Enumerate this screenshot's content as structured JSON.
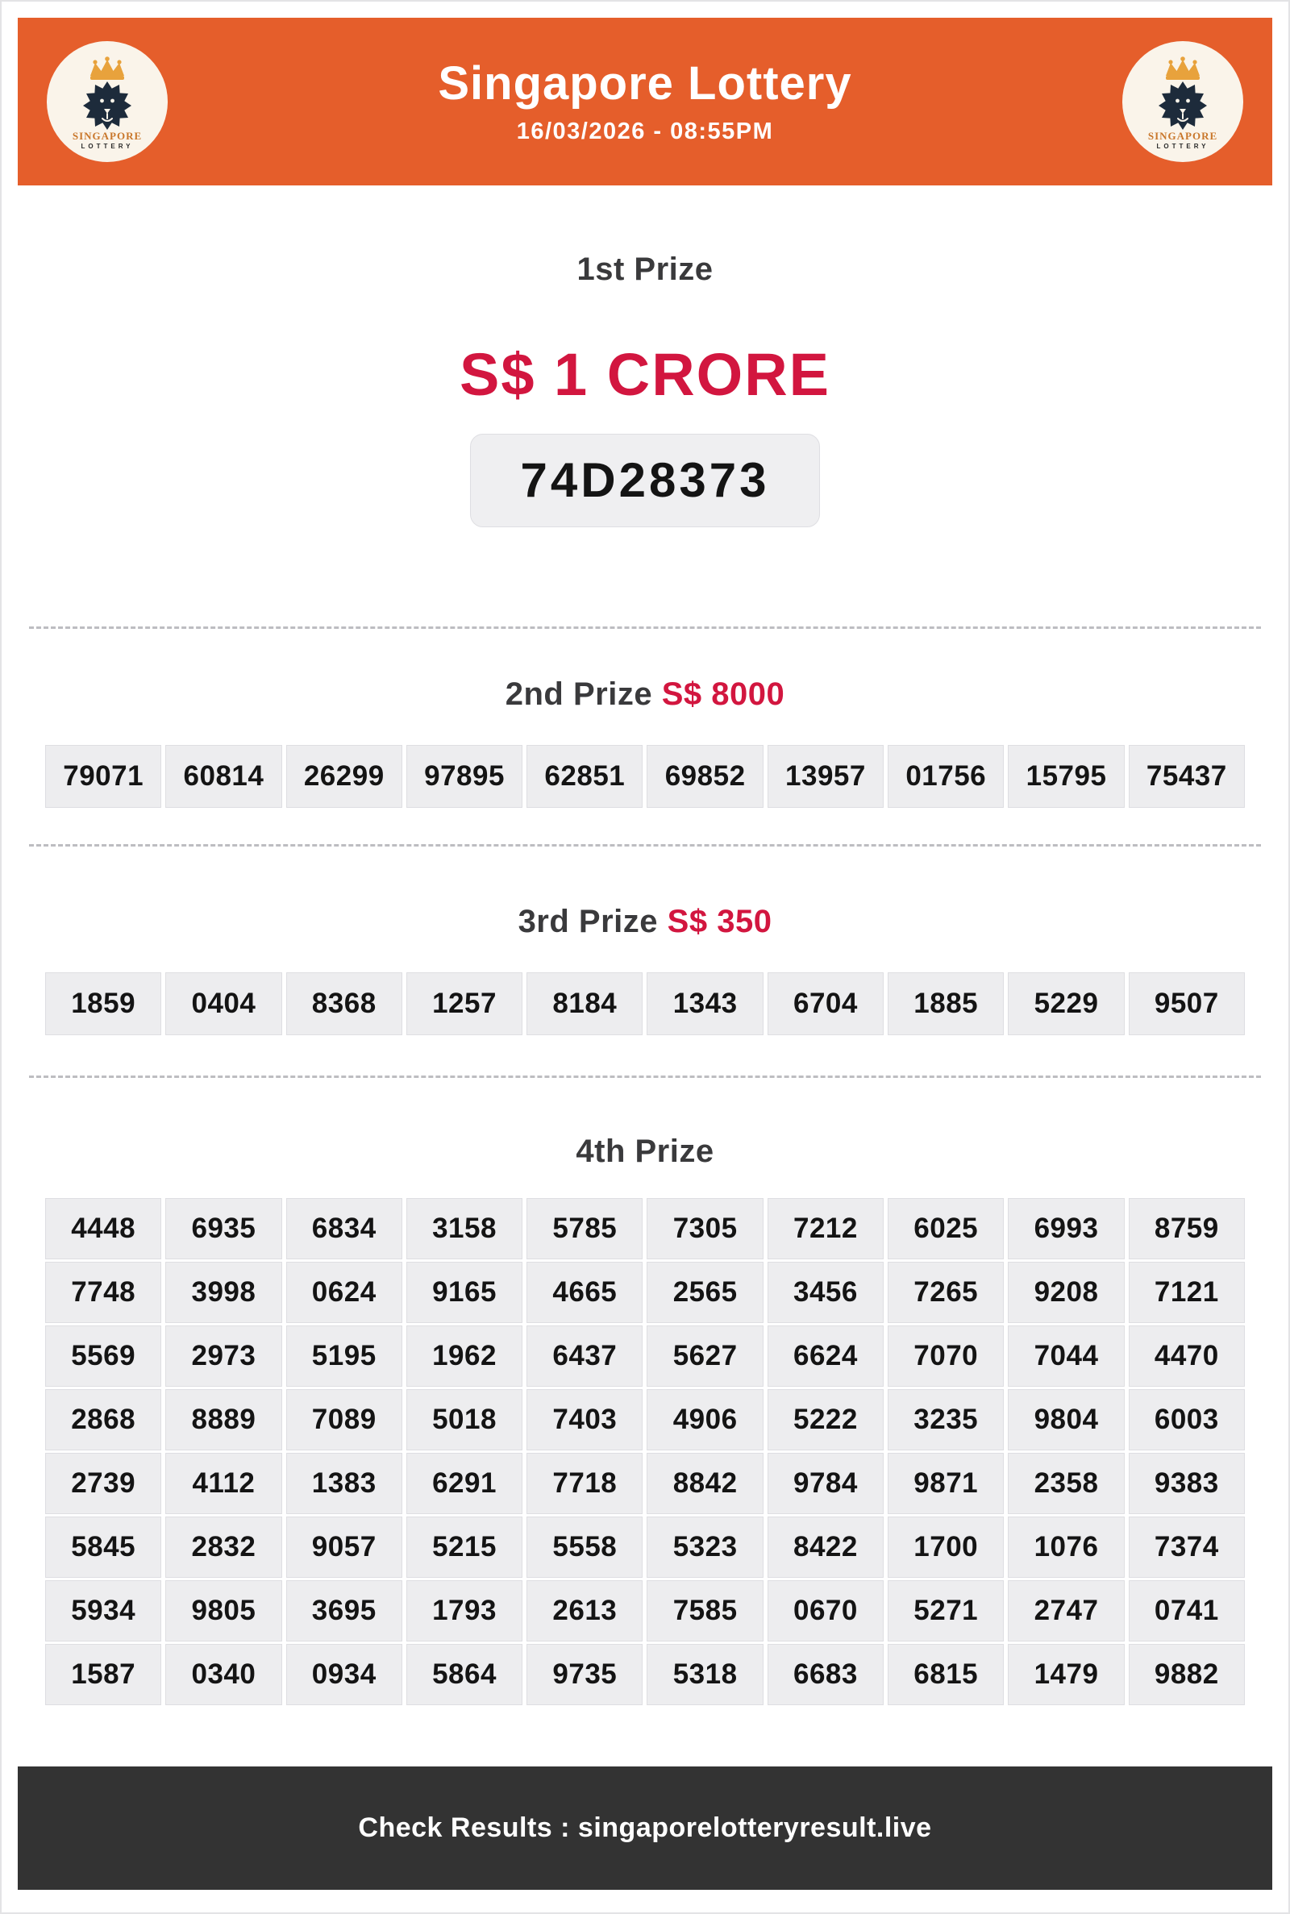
{
  "header": {
    "title": "Singapore Lottery",
    "datetime": "16/03/2026 - 08:55PM",
    "logo": {
      "line1": "SINGAPORE",
      "line2": "LOTTERY"
    }
  },
  "colors": {
    "header_orange": "#E55E2B",
    "accent_red": "#D2163F",
    "heading_dark": "#3A3A3C",
    "cell_bg": "#EDEDEF",
    "footer_bg": "#333333"
  },
  "first_prize": {
    "label": "1st Prize",
    "amount": "S$ 1 CRORE",
    "number": "74D28373"
  },
  "second_prize": {
    "label": "2nd Prize",
    "amount": "S$ 8000",
    "numbers": [
      "79071",
      "60814",
      "26299",
      "97895",
      "62851",
      "69852",
      "13957",
      "01756",
      "15795",
      "75437"
    ]
  },
  "third_prize": {
    "label": "3rd Prize",
    "amount": "S$ 350",
    "numbers": [
      "1859",
      "0404",
      "8368",
      "1257",
      "8184",
      "1343",
      "6704",
      "1885",
      "5229",
      "9507"
    ]
  },
  "fourth_prize": {
    "label": "4th Prize",
    "rows": [
      [
        "4448",
        "6935",
        "6834",
        "3158",
        "5785",
        "7305",
        "7212",
        "6025",
        "6993",
        "8759"
      ],
      [
        "7748",
        "3998",
        "0624",
        "9165",
        "4665",
        "2565",
        "3456",
        "7265",
        "9208",
        "7121"
      ],
      [
        "5569",
        "2973",
        "5195",
        "1962",
        "6437",
        "5627",
        "6624",
        "7070",
        "7044",
        "4470"
      ],
      [
        "2868",
        "8889",
        "7089",
        "5018",
        "7403",
        "4906",
        "5222",
        "3235",
        "9804",
        "6003"
      ],
      [
        "2739",
        "4112",
        "1383",
        "6291",
        "7718",
        "8842",
        "9784",
        "9871",
        "2358",
        "9383"
      ],
      [
        "5845",
        "2832",
        "9057",
        "5215",
        "5558",
        "5323",
        "8422",
        "1700",
        "1076",
        "7374"
      ],
      [
        "5934",
        "9805",
        "3695",
        "1793",
        "2613",
        "7585",
        "0670",
        "5271",
        "2747",
        "0741"
      ],
      [
        "1587",
        "0340",
        "0934",
        "5864",
        "9735",
        "5318",
        "6683",
        "6815",
        "1479",
        "9882"
      ]
    ]
  },
  "footer": {
    "text": "Check Results : singaporelotteryresult.live"
  }
}
